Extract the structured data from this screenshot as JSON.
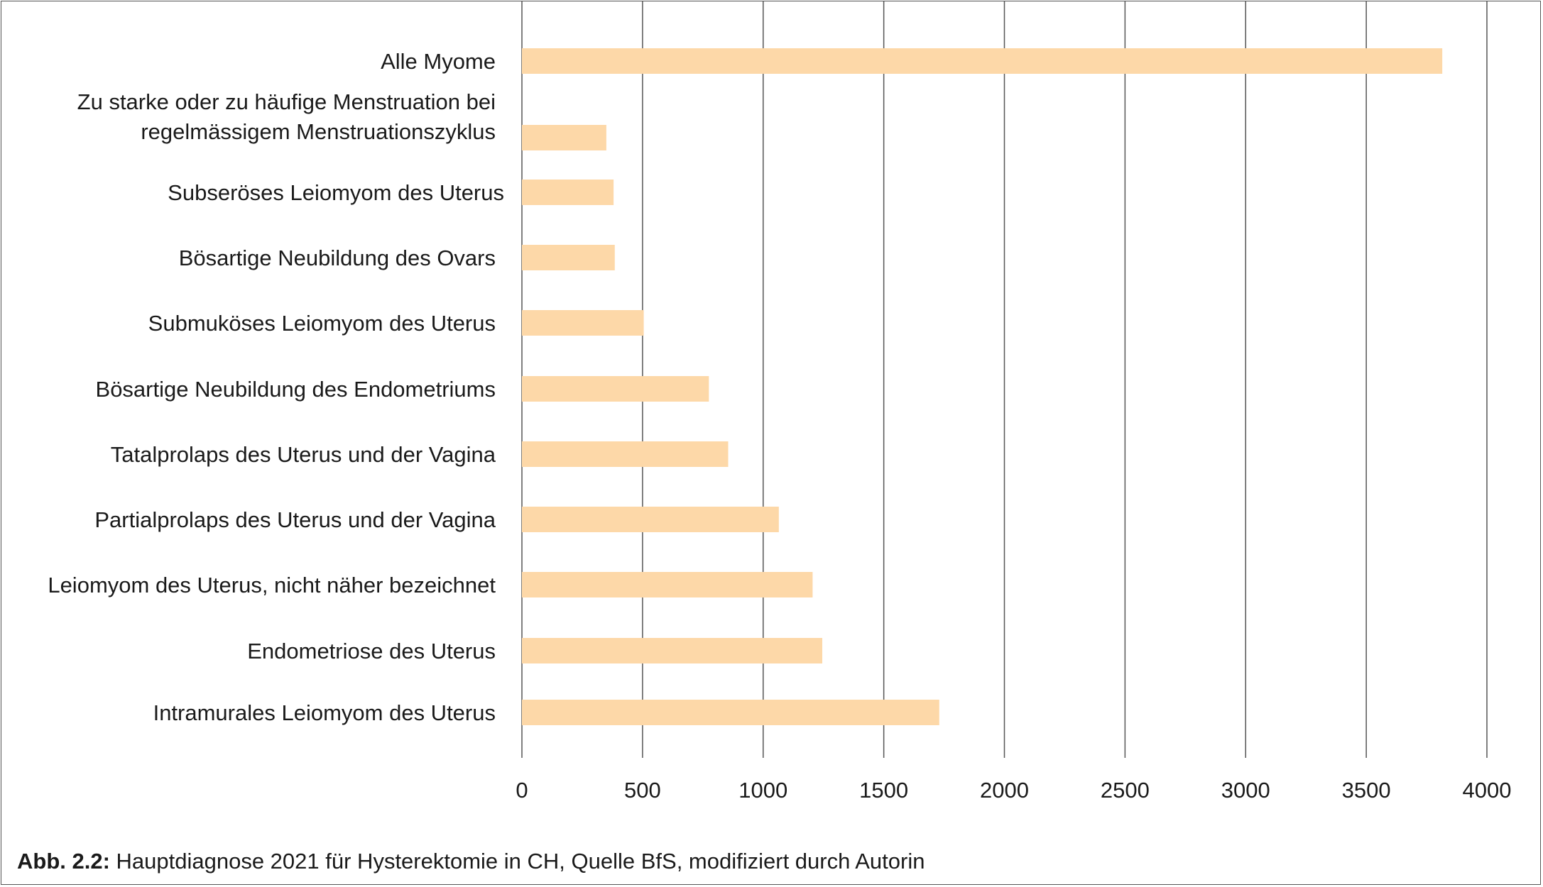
{
  "caption": {
    "prefix": "Abb. 2.2:",
    "text": " Hauptdiagnose 2021 für Hysterektomie in CH, Quelle BfS, modifiziert durch Autorin"
  },
  "colors": {
    "bar": "#FDD8A8",
    "grid": "#555555",
    "text": "#1a1a1a"
  },
  "chart_data": {
    "type": "bar",
    "orientation": "horizontal",
    "title": "",
    "xlabel": "",
    "ylabel": "",
    "xlim": [
      0,
      4000
    ],
    "xticks": [
      0,
      500,
      1000,
      1500,
      2000,
      2500,
      3000,
      3500,
      4000
    ],
    "grid": "vertical",
    "legend": "none",
    "categories": [
      [
        "Alle Myome"
      ],
      [
        "Zu starke oder zu häufige Menstruation bei",
        "regelmässigem Menstruationszyklus"
      ],
      [
        "Subseröses Leiomyom des Uterus"
      ],
      [
        "Bösartige Neubildung des Ovars"
      ],
      [
        "Submuköses Leiomyom des Uterus"
      ],
      [
        "Bösartige Neubildung des Endometriums"
      ],
      [
        "Tatalprolaps des Uterus und der Vagina"
      ],
      [
        "Partialprolaps des Uterus und der Vagina"
      ],
      [
        "Leiomyom des Uterus, nicht näher bezeichnet"
      ],
      [
        "Endometriose des Uterus"
      ],
      [
        "Intramurales Leiomyom des Uterus"
      ]
    ],
    "values": [
      3815,
      350,
      380,
      385,
      505,
      775,
      855,
      1065,
      1205,
      1245,
      1730
    ]
  }
}
